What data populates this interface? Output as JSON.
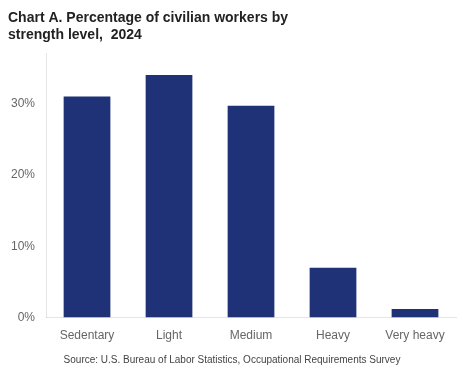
{
  "chart_data": {
    "type": "bar",
    "title": "Chart A. Percentage of civilian workers by\nstrength level,  2024",
    "categories": [
      "Sedentary",
      "Light",
      "Medium",
      "Heavy",
      "Very heavy"
    ],
    "values": [
      31.0,
      34.0,
      29.7,
      7.0,
      1.2
    ],
    "color": "#1F3278",
    "ylim": [
      0,
      37
    ],
    "yticks": [
      {
        "value": 0,
        "label": "0%"
      },
      {
        "value": 10,
        "label": "10%"
      },
      {
        "value": 20,
        "label": "20%"
      },
      {
        "value": 30,
        "label": "30%"
      }
    ],
    "grid": false,
    "annotation": "Source: U.S. Bureau of Labor Statistics, Occupational Requirements Survey"
  }
}
